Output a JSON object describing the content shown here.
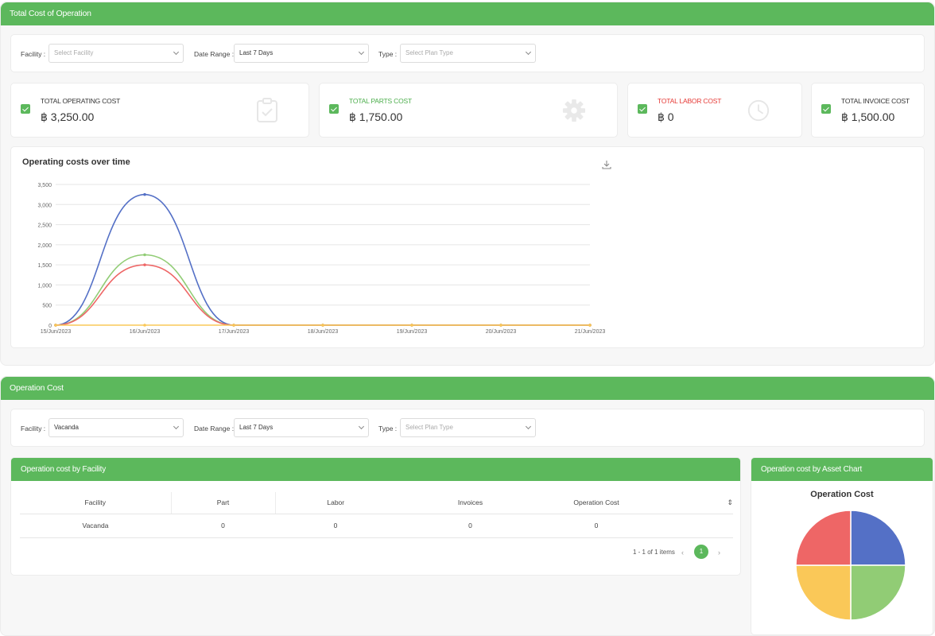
{
  "total_cost": {
    "header": "Total Cost of Operation",
    "filters": {
      "facility_label": "Facility :",
      "facility_placeholder": "Select Facility",
      "date_label": "Date Range :",
      "date_value": "Last 7 Days",
      "type_label": "Type :",
      "type_placeholder": "Select Plan Type"
    },
    "cards": [
      {
        "title": "TOTAL OPERATING COST",
        "value": "฿ 3,250.00",
        "title_color": "#333333",
        "icon": "clipboard-icon"
      },
      {
        "title": "TOTAL PARTS COST",
        "value": "฿ 1,750.00",
        "title_color": "#4cae4c",
        "icon": "gear-icon"
      },
      {
        "title": "TOTAL LABOR COST",
        "value": "฿ 0",
        "title_color": "#e53935",
        "icon": "clock-icon"
      },
      {
        "title": "TOTAL INVOICE COST",
        "value": "฿ 1,500.00",
        "title_color": "#333333",
        "icon": "invoice-icon"
      }
    ]
  },
  "chart_data": {
    "type": "line",
    "title": "Operating costs over time",
    "categories": [
      "15/Jun/2023",
      "16/Jun/2023",
      "17/Jun/2023",
      "18/Jun/2023",
      "19/Jun/2023",
      "20/Jun/2023",
      "21/Jun/2023"
    ],
    "y_ticks": [
      "0",
      "500",
      "1,000",
      "1,500",
      "2,000",
      "2,500",
      "3,000",
      "3,500"
    ],
    "ylim": [
      0,
      3500
    ],
    "grid": true,
    "series": [
      {
        "color": "#5470c6",
        "values": [
          0,
          3250,
          0,
          0,
          0,
          0,
          0
        ]
      },
      {
        "color": "#91cc75",
        "values": [
          0,
          1750,
          0,
          0,
          0,
          0,
          0
        ]
      },
      {
        "color": "#ee6666",
        "values": [
          0,
          1500,
          0,
          0,
          0,
          0,
          0
        ]
      },
      {
        "color": "#fac858",
        "values": [
          0,
          0,
          0,
          0,
          0,
          0,
          0
        ]
      }
    ],
    "download_icon": "download-icon"
  },
  "operation_cost": {
    "header": "Operation Cost",
    "filters": {
      "facility_label": "Facility :",
      "facility_value": "Vacanda",
      "date_label": "Date Range :",
      "date_value": "Last 7 Days",
      "type_label": "Type :",
      "type_placeholder": "Select Plan Type"
    },
    "facility_panel": {
      "title": "Operation cost by Facility",
      "columns": [
        "Facility",
        "Part",
        "Labor",
        "Invoices",
        "Operation Cost"
      ],
      "rows": [
        [
          "Vacanda",
          "0",
          "0",
          "0",
          "0"
        ]
      ],
      "pagination_info": "1 - 1 of 1 items",
      "current_page": "1"
    },
    "asset_panel": {
      "title": "Operation cost by Asset Chart",
      "pie_title": "Operation Cost",
      "pie_colors": [
        "#5470c6",
        "#91cc75",
        "#fac858",
        "#ee6666"
      ]
    }
  }
}
